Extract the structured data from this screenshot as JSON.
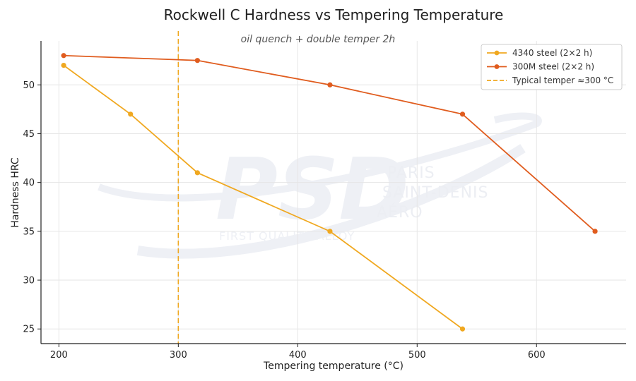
{
  "chart_data": {
    "type": "line",
    "title": "Rockwell C Hardness vs Tempering Temperature",
    "subtitle": "oil quench + double temper 2h",
    "xlabel": "Tempering temperature (°C)",
    "ylabel": "Hardness HRC",
    "xlim": [
      185,
      675
    ],
    "ylim": [
      23.5,
      54.5
    ],
    "xticks": [
      200,
      300,
      400,
      500,
      600
    ],
    "yticks": [
      25,
      30,
      35,
      40,
      45,
      50
    ],
    "grid": true,
    "legend_position": "top-right",
    "series": [
      {
        "name": "4340 steel (2×2 h)",
        "color": "#f0a820",
        "x": [
          204,
          260,
          316,
          427,
          538
        ],
        "y": [
          52,
          47,
          41,
          35,
          25
        ]
      },
      {
        "name": "300M steel (2×2 h)",
        "color": "#e05c1e",
        "x": [
          204,
          316,
          427,
          538,
          649
        ],
        "y": [
          53,
          52.5,
          50,
          47,
          35
        ]
      }
    ],
    "reference_line": {
      "name": "Typical temper ≈300 °C",
      "x": 300,
      "color": "#f0a820",
      "style": "dashed"
    }
  },
  "watermark": {
    "logo": "PSD",
    "lines": [
      "PARIS",
      "SAINT-DENIS",
      "AÉRO"
    ],
    "tagline": "FIRST QUALITY ALLOY"
  }
}
